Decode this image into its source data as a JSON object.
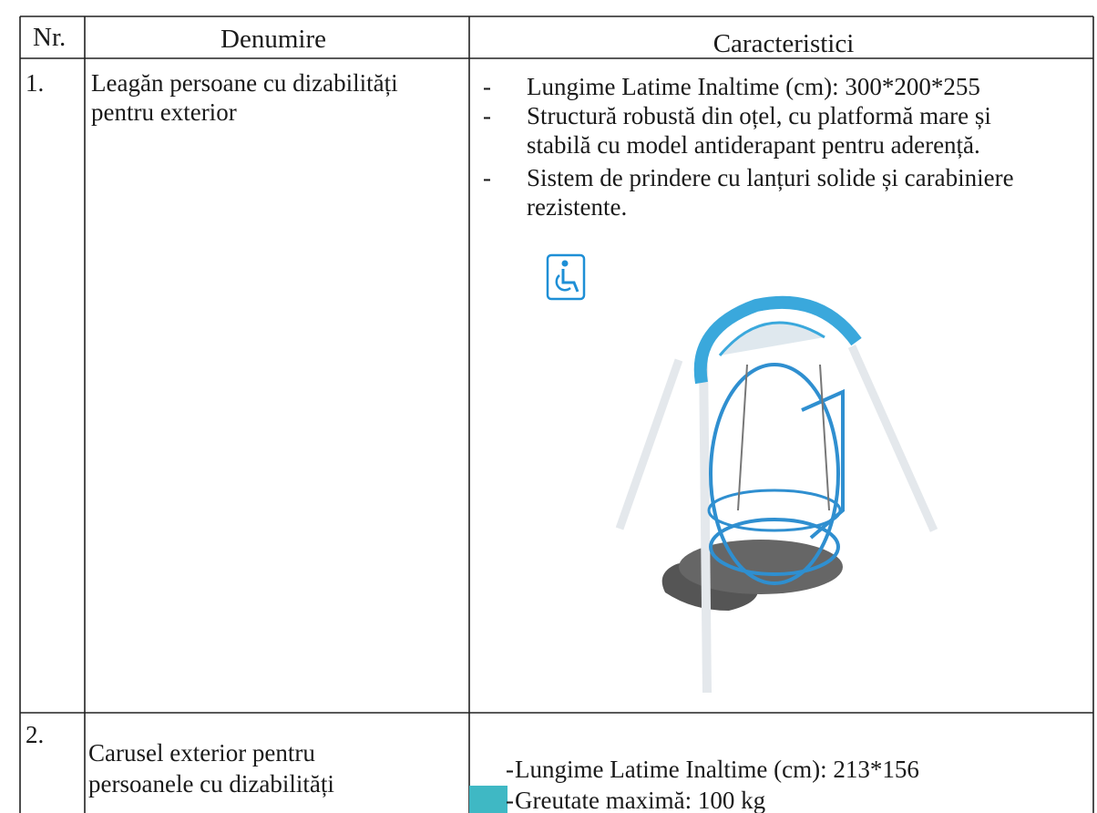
{
  "table": {
    "header": [
      "Nr.",
      "Denumire",
      "Caracteristici"
    ],
    "bullet_marker": "-",
    "rows": [
      {
        "nr": "1.",
        "name": [
          "Leagăn persoane cu dizabilități",
          "pentru exterior"
        ],
        "features": [
          [
            "Lungime Latime Inaltime (cm): 300*200*255"
          ],
          [
            "Structură robustă din oțel, cu platformă mare și",
            "stabilă cu model antiderapant pentru aderență."
          ],
          [
            "Sistem de prindere cu lanțuri solide și carabiniere",
            "rezistente."
          ]
        ]
      },
      {
        "nr": "2.",
        "name": [
          "Carusel exterior pentru",
          "persoanele cu dizabilități"
        ],
        "features": [
          [
            "Lungime Latime Inaltime (cm): 213*156"
          ],
          [
            "Greutate maximă: 100 kg"
          ]
        ]
      }
    ]
  }
}
